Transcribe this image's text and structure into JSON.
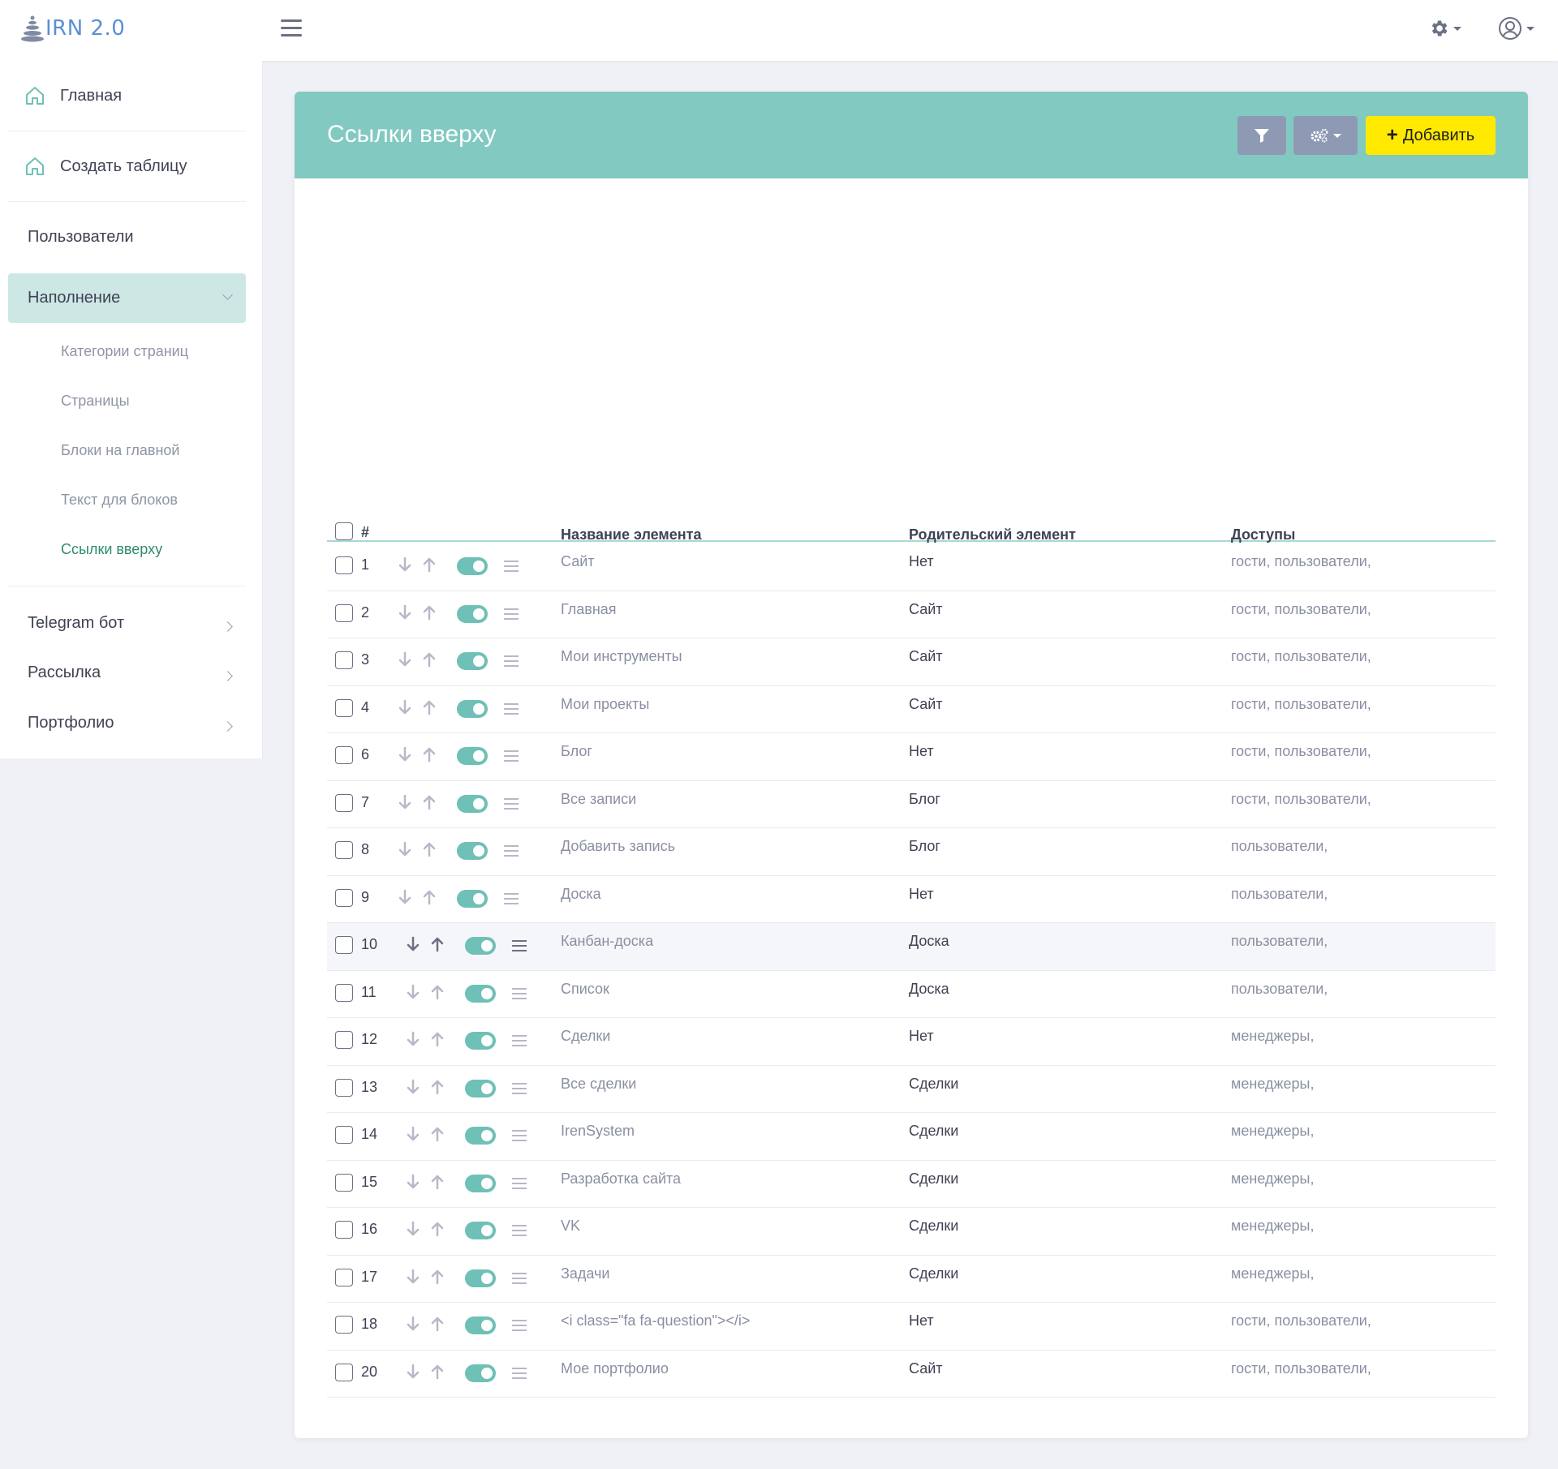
{
  "app": {
    "logo_text": "IRN 2.0"
  },
  "sidebar": {
    "main_items": [
      {
        "label": "Главная"
      },
      {
        "label": "Создать таблицу"
      }
    ],
    "users": "Пользователи",
    "content_group": "Наполнение",
    "content_sub": [
      {
        "label": "Категории страниц"
      },
      {
        "label": "Страницы"
      },
      {
        "label": "Блоки на главной"
      },
      {
        "label": "Текст для блоков"
      },
      {
        "label": "Ссылки вверху"
      }
    ],
    "groups": [
      {
        "label": "Telegram бот"
      },
      {
        "label": "Рассылка"
      },
      {
        "label": "Портфолио"
      }
    ]
  },
  "page": {
    "title": "Ссылки вверху",
    "add_label": "Добавить"
  },
  "table": {
    "headers": {
      "num": "#",
      "name": "Название элемента",
      "parent": "Родительский элемент",
      "access": "Доступы"
    },
    "rows": [
      {
        "id": "1",
        "name": "Сайт",
        "parent": "Нет",
        "access": "гости, пользователи,"
      },
      {
        "id": "2",
        "name": "Главная",
        "parent": "Сайт",
        "access": "гости, пользователи,"
      },
      {
        "id": "3",
        "name": "Мои инструменты",
        "parent": "Сайт",
        "access": "гости, пользователи,"
      },
      {
        "id": "4",
        "name": "Мои проекты",
        "parent": "Сайт",
        "access": "гости, пользователи,"
      },
      {
        "id": "6",
        "name": "Блог",
        "parent": "Нет",
        "access": "гости, пользователи,"
      },
      {
        "id": "7",
        "name": "Все записи",
        "parent": "Блог",
        "access": "гости, пользователи,"
      },
      {
        "id": "8",
        "name": "Добавить запись",
        "parent": "Блог",
        "access": "пользователи,"
      },
      {
        "id": "9",
        "name": "Доска",
        "parent": "Нет",
        "access": "пользователи,"
      },
      {
        "id": "10",
        "name": "Канбан-доска",
        "parent": "Доска",
        "access": "пользователи,"
      },
      {
        "id": "11",
        "name": "Список",
        "parent": "Доска",
        "access": "пользователи,"
      },
      {
        "id": "12",
        "name": "Сделки",
        "parent": "Нет",
        "access": "менеджеры,"
      },
      {
        "id": "13",
        "name": "Все сделки",
        "parent": "Сделки",
        "access": "менеджеры,"
      },
      {
        "id": "14",
        "name": "IrenSystem",
        "parent": "Сделки",
        "access": "менеджеры,"
      },
      {
        "id": "15",
        "name": "Разработка сайта",
        "parent": "Сделки",
        "access": "менеджеры,"
      },
      {
        "id": "16",
        "name": "VK",
        "parent": "Сделки",
        "access": "менеджеры,"
      },
      {
        "id": "17",
        "name": "Задачи",
        "parent": "Сделки",
        "access": "менеджеры,"
      },
      {
        "id": "18",
        "name": "<i class=\"fa fa-question\"></i>",
        "parent": "Нет",
        "access": "гости, пользователи,"
      },
      {
        "id": "20",
        "name": "Мое портфолио",
        "parent": "Сайт",
        "access": "гости, пользователи,"
      }
    ]
  },
  "colors": {
    "header_teal": "#82c9c1",
    "add_yellow": "#ffe900",
    "toggle_on": "#6fc0b6",
    "active_nav": "#cde7e4"
  }
}
